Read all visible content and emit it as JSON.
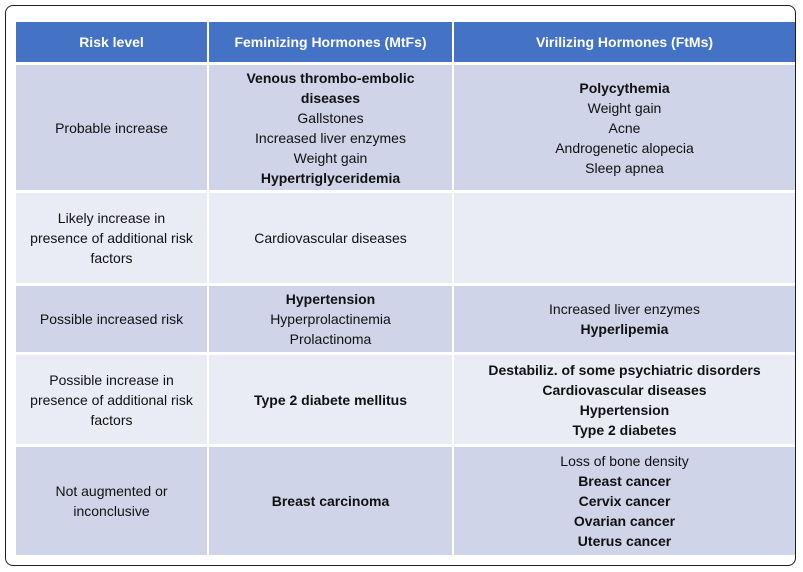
{
  "headers": {
    "risk": "Risk level",
    "mtf": "Feminizing Hormones (MtFs)",
    "ftm": "Virilizing Hormones (FtMs)"
  },
  "rows": [
    {
      "risk": "Probable increase",
      "mtf": [
        {
          "text": "Venous thrombo-embolic diseases",
          "bold": true
        },
        {
          "text": "Gallstones",
          "bold": false
        },
        {
          "text": "Increased liver enzymes",
          "bold": false
        },
        {
          "text": "Weight gain",
          "bold": false
        },
        {
          "text": "Hypertriglyceridemia",
          "bold": true
        }
      ],
      "ftm": [
        {
          "text": "Polycythemia",
          "bold": true
        },
        {
          "text": "Weight gain",
          "bold": false
        },
        {
          "text": "Acne",
          "bold": false
        },
        {
          "text": "Androgenetic alopecia",
          "bold": false
        },
        {
          "text": "Sleep apnea",
          "bold": false
        }
      ]
    },
    {
      "risk": "Likely increase in presence of additional risk factors",
      "mtf": [
        {
          "text": "Cardiovascular diseases",
          "bold": false
        }
      ],
      "ftm": []
    },
    {
      "risk": "Possible increased risk",
      "mtf": [
        {
          "text": "Hypertension",
          "bold": true
        },
        {
          "text": "Hyperprolactinemia",
          "bold": false
        },
        {
          "text": "Prolactinoma",
          "bold": false
        }
      ],
      "ftm": [
        {
          "text": "Increased liver enzymes",
          "bold": false
        },
        {
          "text": "Hyperlipemia",
          "bold": true
        }
      ]
    },
    {
      "risk": "Possible increase in presence of additional risk factors",
      "mtf": [
        {
          "text": "Type 2 diabete mellitus",
          "bold": true
        }
      ],
      "ftm": [
        {
          "text": "Destabiliz. of some psychiatric disorders",
          "bold": true
        },
        {
          "text": "Cardiovascular diseases",
          "bold": true
        },
        {
          "text": "Hypertension",
          "bold": true
        },
        {
          "text": "Type 2 diabetes",
          "bold": true
        }
      ]
    },
    {
      "risk": "Not augmented or inconclusive",
      "mtf": [
        {
          "text": "Breast carcinoma",
          "bold": true
        }
      ],
      "ftm": [
        {
          "text": "Loss of bone density",
          "bold": false
        },
        {
          "text": "Breast cancer",
          "bold": true
        },
        {
          "text": "Cervix cancer",
          "bold": true
        },
        {
          "text": "Ovarian cancer",
          "bold": true
        },
        {
          "text": "Uterus cancer",
          "bold": true
        }
      ]
    }
  ]
}
